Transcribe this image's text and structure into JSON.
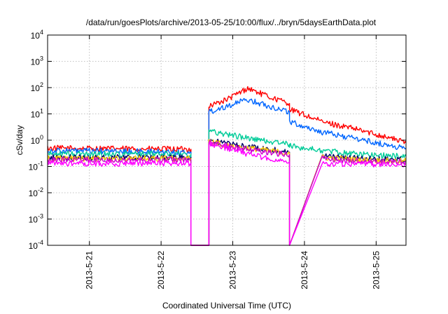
{
  "chart_data": {
    "type": "line",
    "title": "/data/run/goesPlots/archive/2013-05-25/10:00/flux/../bryn/5daysEarthData.plot",
    "xlabel": "Coordinated Universal Time (UTC)",
    "ylabel": "cSv/day",
    "yscale": "log",
    "ylim": [
      0.0001,
      10000
    ],
    "xlim": [
      "2013-05-20 10:00",
      "2013-05-25 10:00"
    ],
    "grid": true,
    "legend": "none",
    "y_ticks": [
      {
        "base": "10",
        "exp": "-4"
      },
      {
        "base": "10",
        "exp": "-3"
      },
      {
        "base": "10",
        "exp": "-2"
      },
      {
        "base": "10",
        "exp": "-1"
      },
      {
        "base": "10",
        "exp": "0"
      },
      {
        "base": "10",
        "exp": "1"
      },
      {
        "base": "10",
        "exp": "2"
      },
      {
        "base": "10",
        "exp": "3"
      },
      {
        "base": "10",
        "exp": "4"
      }
    ],
    "x_ticks": [
      {
        "label": "2013-5-21",
        "value": "2013-05-21 00:00"
      },
      {
        "label": "2013-5-22",
        "value": "2013-05-22 00:00"
      },
      {
        "label": "2013-5-23",
        "value": "2013-05-23 00:00"
      },
      {
        "label": "2013-5-24",
        "value": "2013-05-24 00:00"
      },
      {
        "label": "2013-5-25",
        "value": "2013-05-25 00:00"
      }
    ],
    "series": [
      {
        "color": "#ff0000",
        "x": [
          "2013-05-20 10:00",
          "2013-05-22 10:00",
          "2013-05-22 10:00",
          "2013-05-22 16:00",
          "2013-05-22 16:00",
          "2013-05-22 22:00",
          "2013-05-23 05:00",
          "2013-05-23 12:00",
          "2013-05-23 19:00",
          "2013-05-23 19:00",
          "2013-05-24 06:00",
          "2013-05-24 18:00",
          "2013-05-25 05:00",
          "2013-05-25 10:00"
        ],
        "y": [
          0.5,
          0.45,
          0.0001,
          0.0001,
          20,
          35,
          95,
          45,
          25,
          15,
          5,
          2.5,
          1.2,
          0.8
        ]
      },
      {
        "color": "#0066ff",
        "x": [
          "2013-05-20 10:00",
          "2013-05-22 10:00",
          "2013-05-22 10:00",
          "2013-05-22 16:00",
          "2013-05-22 16:00",
          "2013-05-22 22:00",
          "2013-05-23 05:00",
          "2013-05-23 12:00",
          "2013-05-23 19:00",
          "2013-05-23 19:00",
          "2013-05-24 06:00",
          "2013-05-24 18:00",
          "2013-05-25 05:00",
          "2013-05-25 10:00"
        ],
        "y": [
          0.4,
          0.35,
          0.0001,
          0.0001,
          12,
          20,
          35,
          20,
          12,
          5,
          2,
          1.1,
          0.6,
          0.5
        ]
      },
      {
        "color": "#00cc99",
        "x": [
          "2013-05-20 10:00",
          "2013-05-22 10:00",
          "2013-05-22 10:00",
          "2013-05-22 16:00",
          "2013-05-22 16:00",
          "2013-05-22 22:00",
          "2013-05-23 05:00",
          "2013-05-23 12:00",
          "2013-05-23 19:00",
          "2013-05-23 19:00",
          "2013-05-24 06:00",
          "2013-05-24 18:00",
          "2013-05-25 05:00",
          "2013-05-25 10:00"
        ],
        "y": [
          0.3,
          0.3,
          0.0001,
          0.0001,
          2.2,
          1.7,
          1.2,
          0.9,
          0.7,
          0.6,
          0.4,
          0.3,
          0.25,
          0.25
        ]
      },
      {
        "color": "#000066",
        "x": [
          "2013-05-20 10:00",
          "2013-05-22 10:00",
          "2013-05-22 10:00",
          "2013-05-22 16:00",
          "2013-05-22 16:00",
          "2013-05-22 22:00",
          "2013-05-23 05:00",
          "2013-05-23 12:00",
          "2013-05-23 19:00",
          "2013-05-23 19:00",
          "2013-05-24 06:00",
          "2013-05-24 18:00",
          "2013-05-25 05:00",
          "2013-05-25 10:00"
        ],
        "y": [
          0.22,
          0.22,
          0.0001,
          0.0001,
          1.0,
          0.75,
          0.55,
          0.45,
          0.35,
          0.0001,
          0.25,
          0.2,
          0.18,
          0.18
        ]
      },
      {
        "color": "#ffcc00",
        "x": [
          "2013-05-20 10:00",
          "2013-05-22 10:00",
          "2013-05-22 10:00",
          "2013-05-22 16:00",
          "2013-05-22 16:00",
          "2013-05-22 22:00",
          "2013-05-23 05:00",
          "2013-05-23 12:00",
          "2013-05-23 19:00",
          "2013-05-23 19:00",
          "2013-05-24 06:00",
          "2013-05-24 18:00",
          "2013-05-25 05:00",
          "2013-05-25 10:00"
        ],
        "y": [
          0.2,
          0.2,
          0.0001,
          0.0001,
          0.85,
          0.65,
          0.5,
          0.4,
          0.32,
          0.0001,
          0.22,
          0.18,
          0.16,
          0.16
        ]
      },
      {
        "color": "#cc00cc",
        "x": [
          "2013-05-20 10:00",
          "2013-05-22 10:00",
          "2013-05-22 10:00",
          "2013-05-22 16:00",
          "2013-05-22 16:00",
          "2013-05-22 22:00",
          "2013-05-23 05:00",
          "2013-05-23 12:00",
          "2013-05-23 19:00",
          "2013-05-23 19:00",
          "2013-05-24 06:00",
          "2013-05-24 18:00",
          "2013-05-25 05:00",
          "2013-05-25 10:00"
        ],
        "y": [
          0.18,
          0.18,
          0.0001,
          0.0001,
          0.8,
          0.6,
          0.45,
          0.35,
          0.28,
          0.0001,
          0.2,
          0.16,
          0.15,
          0.15
        ]
      },
      {
        "color": "#ff00ff",
        "x": [
          "2013-05-20 10:00",
          "2013-05-22 10:00",
          "2013-05-22 10:00",
          "2013-05-22 16:00",
          "2013-05-22 16:00",
          "2013-05-22 22:00",
          "2013-05-23 05:00",
          "2013-05-23 12:00",
          "2013-05-23 19:00",
          "2013-05-23 19:00",
          "2013-05-24 06:00",
          "2013-05-24 18:00",
          "2013-05-25 05:00",
          "2013-05-25 10:00"
        ],
        "y": [
          0.13,
          0.13,
          0.0001,
          0.0001,
          0.7,
          0.5,
          0.3,
          0.2,
          0.15,
          0.0001,
          0.13,
          0.12,
          0.12,
          0.12
        ]
      }
    ]
  }
}
